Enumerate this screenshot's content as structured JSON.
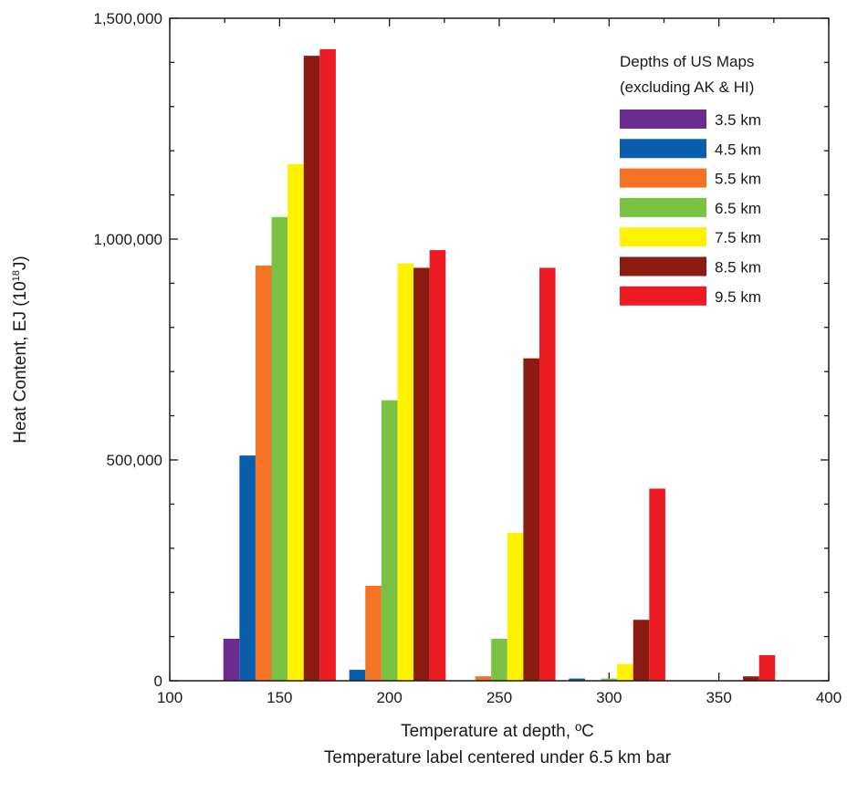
{
  "chart_data": {
    "type": "bar",
    "x_axis": {
      "label": "Temperature at depth, ºC",
      "sublabel": "Temperature label centered under 6.5 km bar",
      "range": [
        100,
        400
      ],
      "ticks": [
        "100",
        "150",
        "200",
        "250",
        "300",
        "350",
        "400"
      ]
    },
    "y_axis": {
      "label_main": "Heat Content, EJ (10",
      "label_exp": "18",
      "label_end": "J)",
      "range": [
        0,
        1500000
      ],
      "ticks": [
        "0",
        "500,000",
        "1,000,000",
        "1,500,000"
      ]
    },
    "categories": [
      150,
      200,
      250,
      300,
      350
    ],
    "legend": {
      "title_line1": "Depths of US Maps",
      "title_line2": "(excluding AK & HI)",
      "placement": "top-right"
    },
    "series": [
      {
        "name": "3.5 km",
        "color": "#6a2d8f",
        "values": [
          95000,
          0,
          0,
          0,
          0
        ]
      },
      {
        "name": "4.5 km",
        "color": "#0a5fad",
        "values": [
          510000,
          25000,
          0,
          5000,
          0
        ]
      },
      {
        "name": "5.5 km",
        "color": "#f47324",
        "values": [
          940000,
          215000,
          10000,
          0,
          0
        ]
      },
      {
        "name": "6.5 km",
        "color": "#7bc143",
        "values": [
          1050000,
          635000,
          95000,
          5000,
          0
        ]
      },
      {
        "name": "7.5 km",
        "color": "#fff200",
        "values": [
          1170000,
          945000,
          335000,
          38000,
          0
        ]
      },
      {
        "name": "8.5 km",
        "color": "#8b1a10",
        "values": [
          1415000,
          935000,
          730000,
          138000,
          10000
        ]
      },
      {
        "name": "9.5 km",
        "color": "#ed1c24",
        "values": [
          1430000,
          975000,
          935000,
          435000,
          58000
        ]
      }
    ]
  }
}
